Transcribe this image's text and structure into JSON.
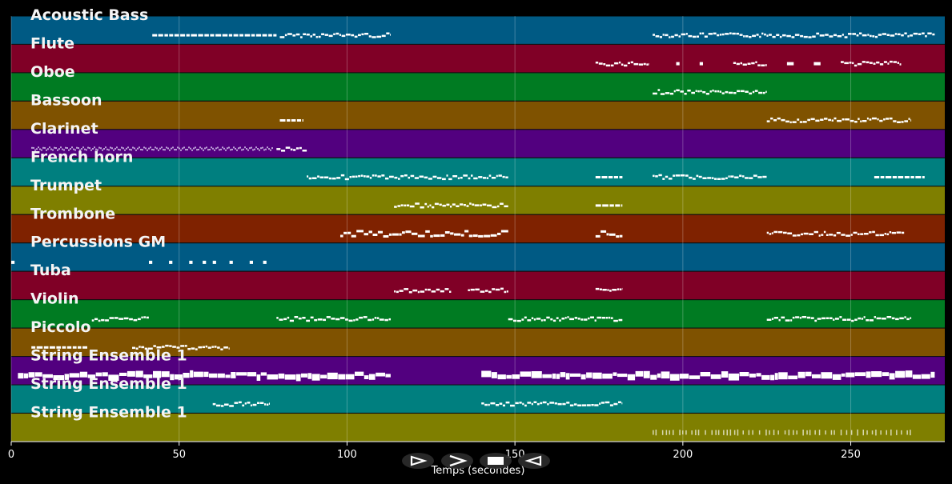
{
  "chart_data": {
    "type": "piano-roll",
    "xlabel": "Temps (secondes)",
    "xlim": [
      0,
      278
    ],
    "xticks": [
      0,
      50,
      100,
      150,
      200,
      250
    ],
    "grid": true,
    "tracks": [
      {
        "name": "Acoustic Bass",
        "color": "#005a84",
        "segments": [
          [
            42,
            79,
            "dash"
          ],
          [
            80,
            113,
            "wave"
          ],
          [
            191,
            275,
            "wave"
          ]
        ]
      },
      {
        "name": "Flute",
        "color": "#800026",
        "segments": [
          [
            174,
            190,
            "wave"
          ],
          [
            198,
            199,
            "dots"
          ],
          [
            205,
            206,
            "dots"
          ],
          [
            215,
            225,
            "wave"
          ],
          [
            231,
            233,
            "dots"
          ],
          [
            239,
            241,
            "dots"
          ],
          [
            247,
            265,
            "wave"
          ]
        ]
      },
      {
        "name": "Oboe",
        "color": "#007b22",
        "segments": [
          [
            191,
            225,
            "wave"
          ]
        ]
      },
      {
        "name": "Bassoon",
        "color": "#7f5200",
        "segments": [
          [
            80,
            87,
            "dash"
          ],
          [
            225,
            268,
            "wave"
          ]
        ]
      },
      {
        "name": "Clarinet",
        "color": "#52007f",
        "segments": [
          [
            6,
            78,
            "dense"
          ],
          [
            79,
            88,
            "wave"
          ]
        ]
      },
      {
        "name": "French horn",
        "color": "#007f7f",
        "segments": [
          [
            88,
            148,
            "wave"
          ],
          [
            174,
            182,
            "dash"
          ],
          [
            191,
            225,
            "wave"
          ],
          [
            257,
            272,
            "dash"
          ]
        ]
      },
      {
        "name": "Trumpet",
        "color": "#7f7f00",
        "segments": [
          [
            114,
            148,
            "wave"
          ],
          [
            174,
            182,
            "dash"
          ]
        ]
      },
      {
        "name": "Trombone",
        "color": "#7f2200",
        "segments": [
          [
            98,
            148,
            "thick"
          ],
          [
            174,
            182,
            "thick"
          ],
          [
            225,
            266,
            "wave"
          ]
        ]
      },
      {
        "name": "Percussions GM",
        "color": "#005a84",
        "segments": [
          [
            0,
            1,
            "dots"
          ],
          [
            41,
            42,
            "dots"
          ],
          [
            47,
            48,
            "dots"
          ],
          [
            53,
            54,
            "dots"
          ],
          [
            57,
            58,
            "dots"
          ],
          [
            60,
            61,
            "dots"
          ],
          [
            65,
            66,
            "dots"
          ],
          [
            71,
            72,
            "dots"
          ],
          [
            75,
            76,
            "dots"
          ]
        ]
      },
      {
        "name": "Tuba",
        "color": "#800026",
        "segments": [
          [
            114,
            131,
            "wave"
          ],
          [
            136,
            148,
            "wave"
          ],
          [
            174,
            182,
            "wave"
          ]
        ]
      },
      {
        "name": "Violin",
        "color": "#007b22",
        "segments": [
          [
            24,
            41,
            "wave"
          ],
          [
            79,
            113,
            "wave"
          ],
          [
            148,
            182,
            "wave"
          ],
          [
            225,
            268,
            "wave"
          ]
        ]
      },
      {
        "name": "Piccolo",
        "color": "#7f5200",
        "segments": [
          [
            6,
            23,
            "dash"
          ],
          [
            36,
            65,
            "wave"
          ]
        ]
      },
      {
        "name": "String Ensemble 1",
        "color": "#52007f",
        "segments": [
          [
            2,
            113,
            "block"
          ],
          [
            140,
            275,
            "block"
          ]
        ]
      },
      {
        "name": "String Ensemble 1",
        "color": "#007f7f",
        "segments": [
          [
            60,
            77,
            "wave"
          ],
          [
            140,
            182,
            "wave"
          ]
        ]
      },
      {
        "name": "String Ensemble 1",
        "color": "#7f7f00",
        "segments": [
          [
            191,
            268,
            "ticks"
          ]
        ]
      }
    ]
  },
  "controls": [
    {
      "name": "rewind",
      "icon": "rewind-icon"
    },
    {
      "name": "play",
      "icon": "play-icon"
    },
    {
      "name": "stop",
      "icon": "stop-icon"
    },
    {
      "name": "forward",
      "icon": "forward-icon"
    }
  ]
}
